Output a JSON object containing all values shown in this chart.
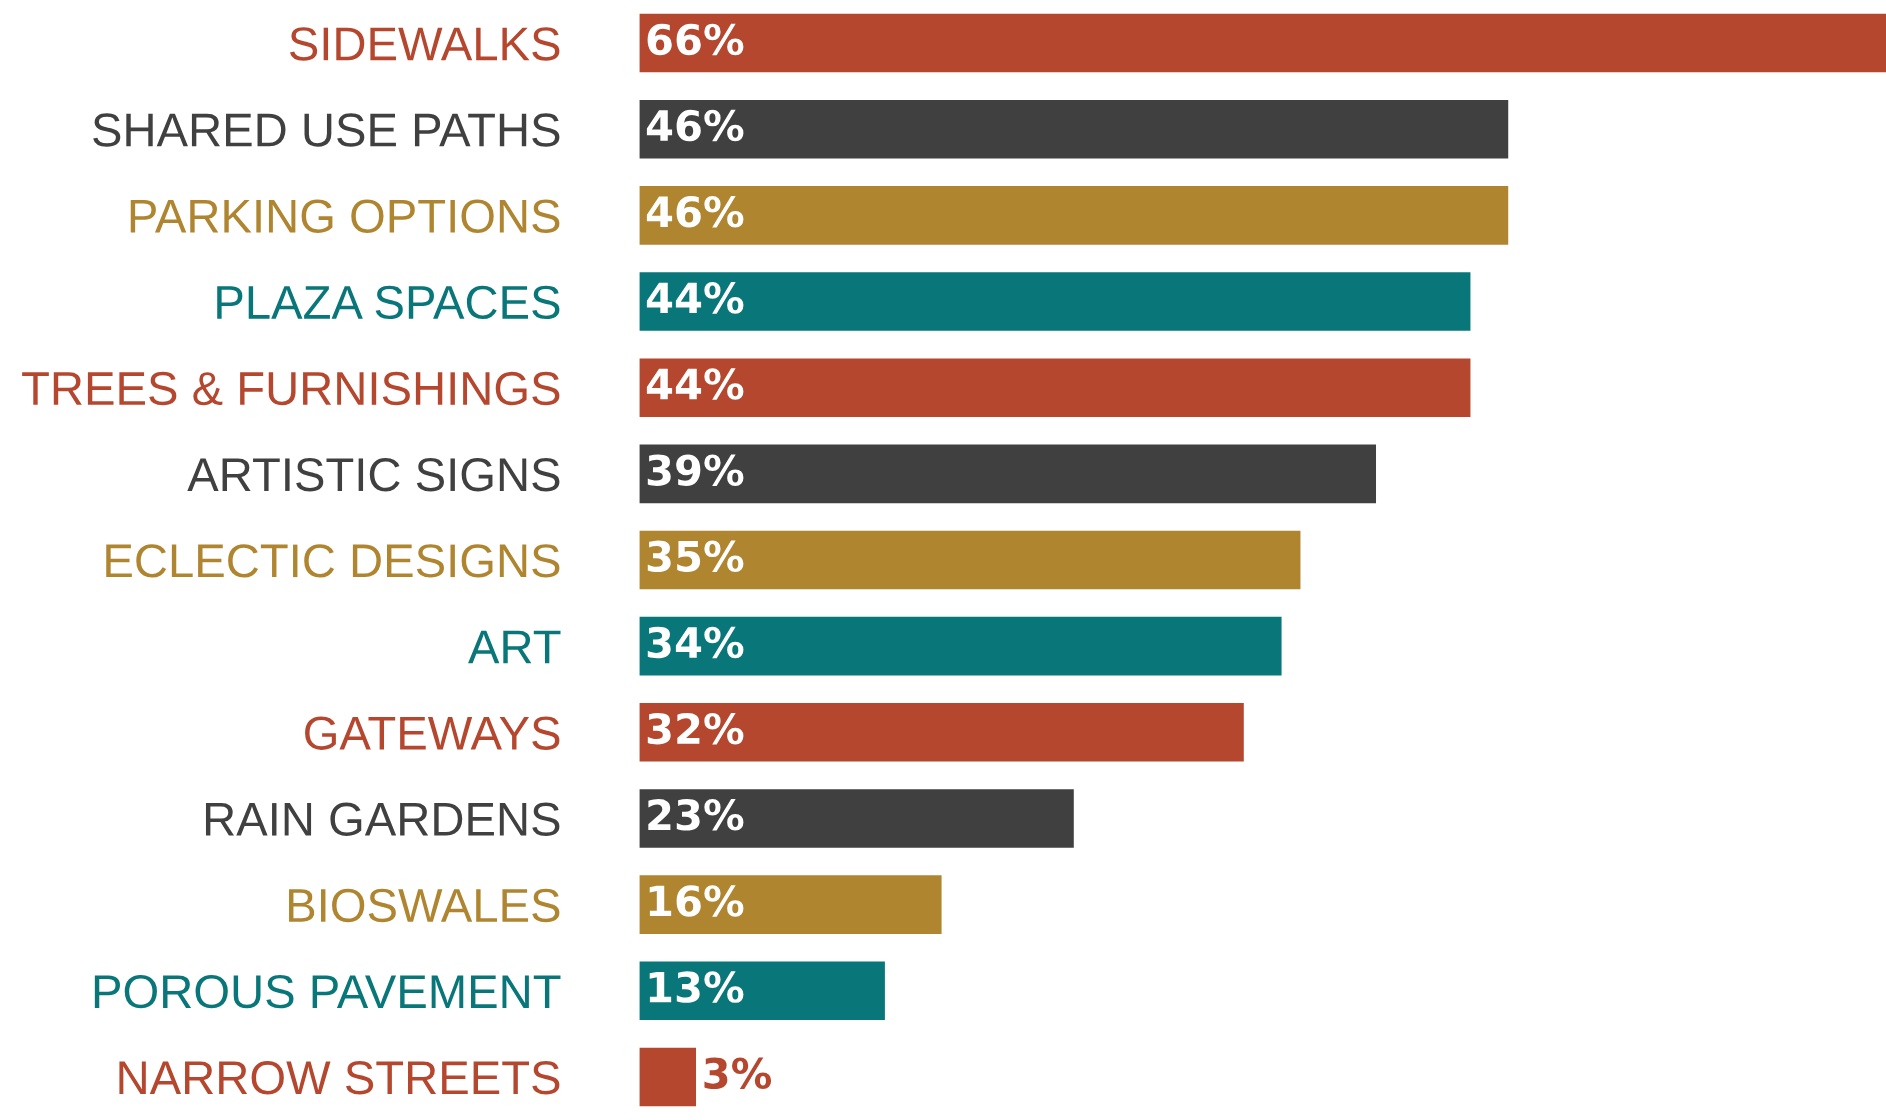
{
  "chart_data": {
    "type": "bar",
    "orientation": "horizontal",
    "categories": [
      "SIDEWALKS",
      "SHARED USE PATHS",
      "PARKING OPTIONS",
      "PLAZA SPACES",
      "TREES & FURNISHINGS",
      "ARTISTIC SIGNS",
      "ECLECTIC DESIGNS",
      "ART",
      "GATEWAYS",
      "RAIN GARDENS",
      "BIOSWALES",
      "POROUS PAVEMENT",
      "NARROW STREETS"
    ],
    "values": [
      66,
      46,
      46,
      44,
      44,
      39,
      35,
      34,
      32,
      23,
      16,
      13,
      3
    ],
    "value_labels": [
      "66%",
      "46%",
      "46%",
      "44%",
      "44%",
      "39%",
      "35%",
      "34%",
      "32%",
      "23%",
      "16%",
      "13%",
      "3%"
    ],
    "colors": [
      "#b5472f",
      "#404041",
      "#b08530",
      "#09777a",
      "#b5472f",
      "#404041",
      "#b08530",
      "#09777a",
      "#b5472f",
      "#404041",
      "#b08530",
      "#09777a",
      "#b5472f"
    ],
    "grid": false,
    "legend": false
  }
}
